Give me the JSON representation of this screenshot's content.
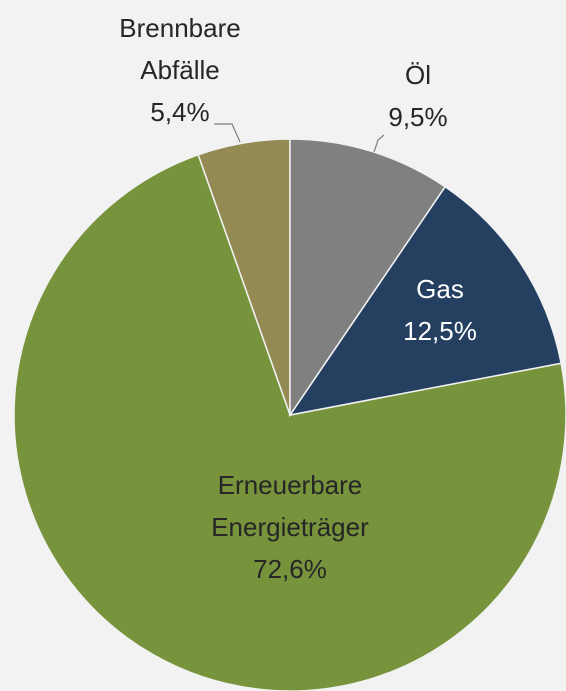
{
  "chart_data": {
    "type": "pie",
    "categories": [
      "Öl",
      "Gas",
      "Erneuerbare Energieträger",
      "Brennbare Abfälle"
    ],
    "values": [
      9.5,
      12.5,
      72.6,
      5.4
    ],
    "value_labels": [
      "9,5%",
      "12,5%",
      "72,6%",
      "5,4%"
    ],
    "colors": [
      "#808080",
      "#243f60",
      "#77933c",
      "#948a54"
    ]
  }
}
